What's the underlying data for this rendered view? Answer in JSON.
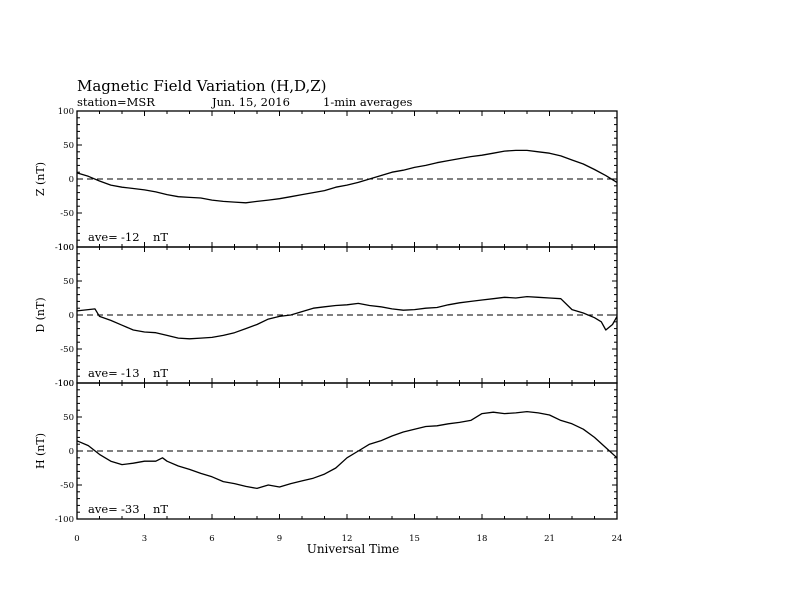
{
  "header": {
    "title": "Magnetic Field Variation (H,D,Z)",
    "station": "station=MSR",
    "date": "Jun. 15, 2016",
    "resolution": "1-min averages"
  },
  "chart_data": {
    "type": "line",
    "xlabel": "Universal Time",
    "xlim": [
      0,
      24
    ],
    "x_ticks": [
      "0",
      "3",
      "6",
      "9",
      "12",
      "15",
      "18",
      "21",
      "24"
    ],
    "ylim": [
      -100,
      100
    ],
    "y_ticks": [
      "100",
      "50",
      "0",
      "-50",
      "-100"
    ],
    "zero_line": "dashed",
    "panels": [
      {
        "name": "Z",
        "ylabel": "Z (nT)",
        "ave_label": "ave=",
        "ave_value": "-12",
        "unit": "nT",
        "x": [
          0,
          0.5,
          1,
          1.5,
          2,
          2.5,
          3,
          3.5,
          4,
          4.5,
          5,
          5.5,
          6,
          6.5,
          7,
          7.5,
          8,
          8.5,
          9,
          9.5,
          10,
          10.5,
          11,
          11.5,
          12,
          12.5,
          13,
          13.5,
          14,
          14.5,
          15,
          15.5,
          16,
          16.5,
          17,
          17.5,
          18,
          18.5,
          19,
          19.5,
          20,
          20.5,
          21,
          21.5,
          22,
          22.5,
          23,
          23.5,
          24
        ],
        "values": [
          9,
          4,
          -3,
          -9,
          -12,
          -14,
          -16,
          -19,
          -23,
          -26,
          -27,
          -28,
          -31,
          -33,
          -34,
          -35,
          -33,
          -31,
          -29,
          -26,
          -23,
          -20,
          -17,
          -12,
          -9,
          -5,
          0,
          5,
          10,
          13,
          17,
          20,
          24,
          27,
          30,
          33,
          35,
          38,
          41,
          42,
          42,
          40,
          38,
          34,
          28,
          22,
          14,
          5,
          -5
        ]
      },
      {
        "name": "D",
        "ylabel": "D (nT)",
        "ave_label": "ave=",
        "ave_value": "-13",
        "unit": "nT",
        "x": [
          0,
          0.5,
          0.8,
          1,
          1.5,
          2,
          2.5,
          3,
          3.5,
          4,
          4.5,
          5,
          5.5,
          6,
          6.5,
          7,
          7.5,
          8,
          8.5,
          9,
          9.5,
          10,
          10.5,
          11,
          11.5,
          12,
          12.5,
          13,
          13.5,
          14,
          14.5,
          15,
          15.5,
          16,
          16.5,
          17,
          17.5,
          18,
          18.5,
          19,
          19.5,
          20,
          20.5,
          21,
          21.5,
          22,
          22.5,
          23,
          23.3,
          23.5,
          23.8,
          24
        ],
        "values": [
          6,
          8,
          9,
          -2,
          -8,
          -15,
          -22,
          -25,
          -26,
          -30,
          -34,
          -35,
          -34,
          -33,
          -30,
          -26,
          -20,
          -14,
          -6,
          -2,
          0,
          5,
          10,
          12,
          14,
          15,
          17,
          14,
          12,
          9,
          7,
          8,
          10,
          11,
          15,
          18,
          20,
          22,
          24,
          26,
          25,
          27,
          26,
          25,
          24,
          8,
          3,
          -4,
          -10,
          -22,
          -14,
          -2
        ]
      },
      {
        "name": "H",
        "ylabel": "H (nT)",
        "ave_label": "ave=",
        "ave_value": "-33",
        "unit": "nT",
        "x": [
          0,
          0.5,
          1,
          1.5,
          2,
          2.5,
          3,
          3.5,
          3.8,
          4,
          4.5,
          5,
          5.5,
          6,
          6.5,
          7,
          7.5,
          8,
          8.5,
          9,
          9.5,
          10,
          10.5,
          11,
          11.5,
          12,
          12.5,
          13,
          13.5,
          14,
          14.5,
          15,
          15.5,
          16,
          16.5,
          17,
          17.5,
          18,
          18.5,
          19,
          19.5,
          20,
          20.5,
          21,
          21.5,
          22,
          22.5,
          23,
          23.5,
          24
        ],
        "values": [
          15,
          8,
          -5,
          -15,
          -20,
          -18,
          -15,
          -15,
          -10,
          -15,
          -22,
          -27,
          -33,
          -38,
          -45,
          -48,
          -52,
          -55,
          -50,
          -53,
          -48,
          -44,
          -40,
          -34,
          -25,
          -10,
          0,
          10,
          15,
          22,
          28,
          32,
          36,
          37,
          40,
          42,
          45,
          55,
          57,
          55,
          56,
          58,
          56,
          53,
          45,
          40,
          32,
          20,
          5,
          -10
        ]
      }
    ]
  }
}
